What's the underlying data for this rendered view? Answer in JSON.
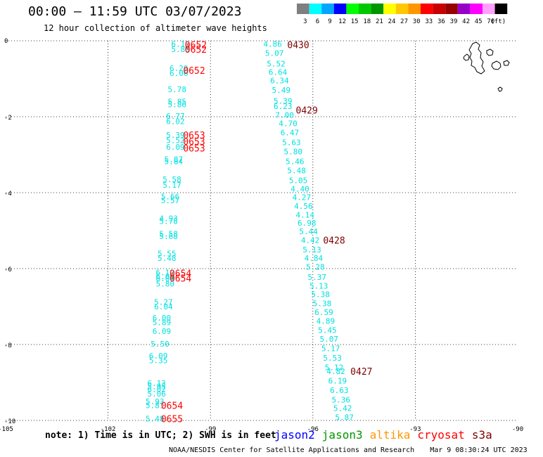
{
  "header": {
    "title": "00:00 – 11:59 UTC 03/07/2023",
    "subtitle": "12 hour collection of altimeter wave heights"
  },
  "legend": {
    "unit": "(ft)",
    "bins": [
      {
        "label": "3",
        "color": "#7f7f7f"
      },
      {
        "label": "6",
        "color": "#00ffff"
      },
      {
        "label": "9",
        "color": "#00a6ff"
      },
      {
        "label": "12",
        "color": "#0000ff"
      },
      {
        "label": "15",
        "color": "#00ff00"
      },
      {
        "label": "18",
        "color": "#00c800"
      },
      {
        "label": "21",
        "color": "#009600"
      },
      {
        "label": "24",
        "color": "#ffff00"
      },
      {
        "label": "27",
        "color": "#ffc800"
      },
      {
        "label": "30",
        "color": "#ff9600"
      },
      {
        "label": "33",
        "color": "#ff0000"
      },
      {
        "label": "36",
        "color": "#c80000"
      },
      {
        "label": "39",
        "color": "#960000"
      },
      {
        "label": "42",
        "color": "#9600c8"
      },
      {
        "label": "45",
        "color": "#ff00ff"
      },
      {
        "label": "70",
        "color": "#ffa0ff"
      },
      {
        "label": "",
        "color": "#000000"
      }
    ]
  },
  "axes": {
    "lon_ticks": [
      "-105",
      "-102",
      "-99",
      "-96",
      "-93",
      "-90"
    ],
    "lat_ticks": [
      "0",
      "-2",
      "-4",
      "-6",
      "-8",
      "-10"
    ]
  },
  "colors": {
    "swh_cyan": "#00e0e0",
    "time_red": "#ff0000",
    "time_darkred": "#800000"
  },
  "tracks": {
    "western": {
      "values": [
        {
          "v": "6.13",
          "lat": -0.08,
          "lon": -100.15
        },
        {
          "v": "5.85",
          "lat": -0.22,
          "lon": -100.15
        },
        {
          "v": "6.29",
          "lat": -0.72,
          "lon": -100.2
        },
        {
          "v": "6.06",
          "lat": -0.85,
          "lon": -100.2
        },
        {
          "v": "5.78",
          "lat": -1.28,
          "lon": -100.25
        },
        {
          "v": "5.85",
          "lat": -1.6,
          "lon": -100.25
        },
        {
          "v": "5.86",
          "lat": -1.68,
          "lon": -100.25
        },
        {
          "v": "6.77",
          "lat": -1.98,
          "lon": -100.3
        },
        {
          "v": "6.02",
          "lat": -2.12,
          "lon": -100.3
        },
        {
          "v": "5.39",
          "lat": -2.48,
          "lon": -100.3
        },
        {
          "v": "5.52",
          "lat": -2.62,
          "lon": -100.3
        },
        {
          "v": "6.09",
          "lat": -2.8,
          "lon": -100.3
        },
        {
          "v": "5.87",
          "lat": -3.12,
          "lon": -100.35
        },
        {
          "v": "5.84",
          "lat": -3.18,
          "lon": -100.35
        },
        {
          "v": "5.58",
          "lat": -3.65,
          "lon": -100.4
        },
        {
          "v": "5.17",
          "lat": -3.8,
          "lon": -100.4
        },
        {
          "v": "5.66",
          "lat": -4.1,
          "lon": -100.45
        },
        {
          "v": "5.57",
          "lat": -4.2,
          "lon": -100.45
        },
        {
          "v": "4.93",
          "lat": -4.68,
          "lon": -100.5
        },
        {
          "v": "5.78",
          "lat": -4.75,
          "lon": -100.5
        },
        {
          "v": "5.58",
          "lat": -5.08,
          "lon": -100.5
        },
        {
          "v": "5.68",
          "lat": -5.15,
          "lon": -100.5
        },
        {
          "v": "5.55",
          "lat": -5.6,
          "lon": -100.55
        },
        {
          "v": "5.48",
          "lat": -5.72,
          "lon": -100.55
        },
        {
          "v": "6.12",
          "lat": -6.1,
          "lon": -100.6
        },
        {
          "v": "6.06",
          "lat": -6.2,
          "lon": -100.6
        },
        {
          "v": "6.04",
          "lat": -6.26,
          "lon": -100.6
        },
        {
          "v": "5.80",
          "lat": -6.4,
          "lon": -100.6
        },
        {
          "v": "5.27",
          "lat": -6.88,
          "lon": -100.65
        },
        {
          "v": "6.04",
          "lat": -7.0,
          "lon": -100.65
        },
        {
          "v": "6.00",
          "lat": -7.3,
          "lon": -100.7
        },
        {
          "v": "5.89",
          "lat": -7.42,
          "lon": -100.7
        },
        {
          "v": "6.09",
          "lat": -7.65,
          "lon": -100.7
        },
        {
          "v": "5.50",
          "lat": -7.98,
          "lon": -100.75
        },
        {
          "v": "6.09",
          "lat": -8.3,
          "lon": -100.8
        },
        {
          "v": "5.35",
          "lat": -8.42,
          "lon": -100.8
        },
        {
          "v": "6.13",
          "lat": -9.02,
          "lon": -100.85
        },
        {
          "v": "5.95",
          "lat": -9.1,
          "lon": -100.85
        },
        {
          "v": "6.02",
          "lat": -9.18,
          "lon": -100.85
        },
        {
          "v": "5.06",
          "lat": -9.3,
          "lon": -100.85
        },
        {
          "v": "5.93",
          "lat": -9.5,
          "lon": -100.9
        },
        {
          "v": "5.81",
          "lat": -9.6,
          "lon": -100.9
        },
        {
          "v": "5.48",
          "lat": -9.95,
          "lon": -100.9
        }
      ],
      "times": [
        {
          "t": "0652",
          "lat": -0.1,
          "lon": -99.75
        },
        {
          "t": "0652",
          "lat": -0.22,
          "lon": -99.75
        },
        {
          "t": "0652",
          "lat": -0.78,
          "lon": -99.8
        },
        {
          "t": "0653",
          "lat": -2.48,
          "lon": -99.8
        },
        {
          "t": "0653",
          "lat": -2.65,
          "lon": -99.8
        },
        {
          "t": "0653",
          "lat": -2.82,
          "lon": -99.8
        },
        {
          "t": "0654",
          "lat": -6.12,
          "lon": -100.2
        },
        {
          "t": "0654",
          "lat": -6.25,
          "lon": -100.2
        },
        {
          "t": "0654",
          "lat": -9.6,
          "lon": -100.45
        },
        {
          "t": "0655",
          "lat": -9.95,
          "lon": -100.45
        }
      ]
    },
    "eastern": {
      "values": [
        {
          "v": "4.86",
          "lat": -0.08,
          "lon": -97.45
        },
        {
          "v": "5.07",
          "lat": -0.32,
          "lon": -97.4
        },
        {
          "v": "5.52",
          "lat": -0.6,
          "lon": -97.35
        },
        {
          "v": "6.64",
          "lat": -0.82,
          "lon": -97.3
        },
        {
          "v": "6.34",
          "lat": -1.05,
          "lon": -97.25
        },
        {
          "v": "5.49",
          "lat": -1.3,
          "lon": -97.2
        },
        {
          "v": "5.39",
          "lat": -1.58,
          "lon": -97.15
        },
        {
          "v": "6.23",
          "lat": -1.72,
          "lon": -97.15
        },
        {
          "v": "7.00",
          "lat": -1.95,
          "lon": -97.1
        },
        {
          "v": "4.70",
          "lat": -2.18,
          "lon": -97.0
        },
        {
          "v": "6.47",
          "lat": -2.42,
          "lon": -96.95
        },
        {
          "v": "5.63",
          "lat": -2.68,
          "lon": -96.9
        },
        {
          "v": "5.80",
          "lat": -2.92,
          "lon": -96.85
        },
        {
          "v": "5.46",
          "lat": -3.18,
          "lon": -96.8
        },
        {
          "v": "5.48",
          "lat": -3.42,
          "lon": -96.75
        },
        {
          "v": "5.05",
          "lat": -3.68,
          "lon": -96.7
        },
        {
          "v": "4.40",
          "lat": -3.9,
          "lon": -96.65
        },
        {
          "v": "4.27",
          "lat": -4.12,
          "lon": -96.6
        },
        {
          "v": "4.56",
          "lat": -4.35,
          "lon": -96.55
        },
        {
          "v": "4.14",
          "lat": -4.58,
          "lon": -96.5
        },
        {
          "v": "6.98",
          "lat": -4.8,
          "lon": -96.45
        },
        {
          "v": "5.44",
          "lat": -5.02,
          "lon": -96.4
        },
        {
          "v": "4.42",
          "lat": -5.25,
          "lon": -96.35
        },
        {
          "v": "5.13",
          "lat": -5.5,
          "lon": -96.3
        },
        {
          "v": "4.84",
          "lat": -5.72,
          "lon": -96.25
        },
        {
          "v": "5.28",
          "lat": -5.95,
          "lon": -96.2
        },
        {
          "v": "5.37",
          "lat": -6.22,
          "lon": -96.15
        },
        {
          "v": "5.13",
          "lat": -6.45,
          "lon": -96.1
        },
        {
          "v": "5.38",
          "lat": -6.68,
          "lon": -96.05
        },
        {
          "v": "5.38",
          "lat": -6.92,
          "lon": -96.0
        },
        {
          "v": "6.59",
          "lat": -7.15,
          "lon": -95.95
        },
        {
          "v": "4.89",
          "lat": -7.38,
          "lon": -95.9
        },
        {
          "v": "5.45",
          "lat": -7.62,
          "lon": -95.85
        },
        {
          "v": "5.07",
          "lat": -7.85,
          "lon": -95.8
        },
        {
          "v": "5.17",
          "lat": -8.1,
          "lon": -95.75
        },
        {
          "v": "5.53",
          "lat": -8.35,
          "lon": -95.7
        },
        {
          "v": "5.12",
          "lat": -8.6,
          "lon": -95.65
        },
        {
          "v": "4.82",
          "lat": -8.7,
          "lon": -95.6
        },
        {
          "v": "6.19",
          "lat": -8.95,
          "lon": -95.55
        },
        {
          "v": "6.63",
          "lat": -9.2,
          "lon": -95.5
        },
        {
          "v": "5.36",
          "lat": -9.45,
          "lon": -95.45
        },
        {
          "v": "5.42",
          "lat": -9.68,
          "lon": -95.4
        },
        {
          "v": "5.87",
          "lat": -9.92,
          "lon": -95.35
        }
      ],
      "times": [
        {
          "t": "0430",
          "lat": -0.1,
          "lon": -96.75
        },
        {
          "t": "0429",
          "lat": -1.82,
          "lon": -96.5
        },
        {
          "t": "0428",
          "lat": -5.25,
          "lon": -95.7
        },
        {
          "t": "0427",
          "lat": -8.7,
          "lon": -94.9
        }
      ]
    }
  },
  "footer": {
    "note": "note: 1) Time is in UTC; 2) SWH is in feet",
    "satellites": [
      {
        "name": "jason2",
        "color": "#0000ff"
      },
      {
        "name": "jason3",
        "color": "#009600"
      },
      {
        "name": "altika",
        "color": "#ff9600"
      },
      {
        "name": "cryosat",
        "color": "#ff0000"
      },
      {
        "name": "s3a",
        "color": "#800000"
      }
    ],
    "credit": "NOAA/NESDIS Center for Satellite Applications and Research",
    "timestamp": "Mar  9 08:30:24 UTC 2023"
  }
}
